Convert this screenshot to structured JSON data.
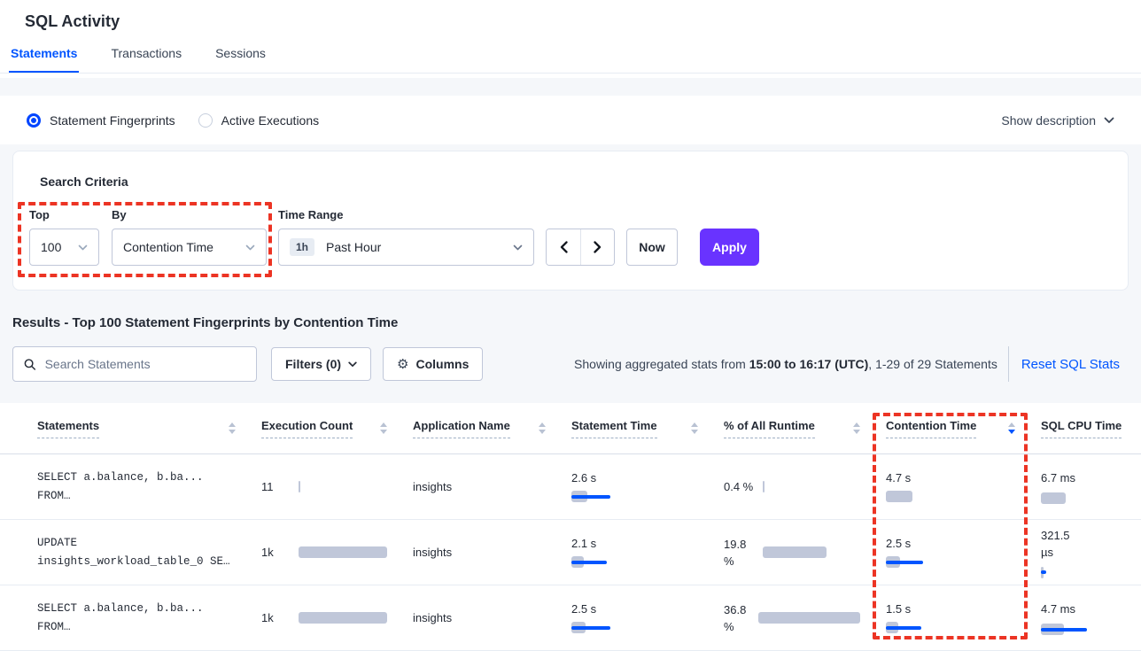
{
  "page": {
    "title": "SQL Activity"
  },
  "tabs": [
    {
      "label": "Statements"
    },
    {
      "label": "Transactions"
    },
    {
      "label": "Sessions"
    }
  ],
  "view_toggle": {
    "fingerprints_label": "Statement Fingerprints",
    "active_executions_label": "Active Executions",
    "show_description_label": "Show description"
  },
  "search_criteria": {
    "heading": "Search Criteria",
    "top_label": "Top",
    "top_value": "100",
    "by_label": "By",
    "by_value": "Contention Time",
    "time_range_label": "Time Range",
    "time_range_badge": "1h",
    "time_range_value": "Past Hour",
    "now_label": "Now",
    "apply_label": "Apply"
  },
  "results": {
    "heading": "Results - Top 100 Statement Fingerprints by Contention Time",
    "search_placeholder": "Search Statements",
    "filters_label": "Filters (0)",
    "columns_label": "Columns",
    "stats_prefix": "Showing aggregated stats from ",
    "stats_bold": "15:00 to 16:17 (UTC)",
    "stats_suffix": ", 1-29 of 29 Statements",
    "reset_label": "Reset SQL Stats"
  },
  "table": {
    "columns": [
      {
        "label": "Statements"
      },
      {
        "label": "Execution Count"
      },
      {
        "label": "Application Name"
      },
      {
        "label": "Statement Time"
      },
      {
        "label": "% of All Runtime"
      },
      {
        "label": "Contention Time",
        "sorted": "desc"
      },
      {
        "label": "SQL CPU Time"
      }
    ],
    "rows": [
      {
        "statement_line1": "SELECT a.balance, b.ba...",
        "statement_line2": "FROM…",
        "execution_count": "11",
        "application_name": "insights",
        "statement_time": "2.6 s",
        "runtime_pct": "0.4 %",
        "contention_time": "4.7 s",
        "sql_cpu_time": "6.7 ms",
        "bars": {
          "exec": {
            "gray": 2,
            "blue": 0
          },
          "stmt": {
            "gray": 18,
            "blue": 44
          },
          "pct": {
            "gray": 2,
            "blue": 0
          },
          "cont": {
            "gray": 30,
            "blue": 0
          },
          "cpu": {
            "gray": 28,
            "blue": 0
          }
        }
      },
      {
        "statement_line1": "UPDATE",
        "statement_line2": "insights_workload_table_0 SE…",
        "execution_count": "1k",
        "application_name": "insights",
        "statement_time": "2.1 s",
        "runtime_pct": "19.8 %",
        "contention_time": "2.5 s",
        "sql_cpu_time": "321.5 µs",
        "bars": {
          "exec": {
            "gray": 100,
            "blue": 0
          },
          "stmt": {
            "gray": 14,
            "blue": 40
          },
          "pct": {
            "gray": 72,
            "blue": 0
          },
          "cont": {
            "gray": 16,
            "blue": 42
          },
          "cpu": {
            "gray": 3,
            "blue": 6
          }
        }
      },
      {
        "statement_line1": "SELECT a.balance, b.ba...",
        "statement_line2": "FROM…",
        "execution_count": "1k",
        "application_name": "insights",
        "statement_time": "2.5 s",
        "runtime_pct": "36.8 %",
        "contention_time": "1.5 s",
        "sql_cpu_time": "4.7 ms",
        "bars": {
          "exec": {
            "gray": 100,
            "blue": 0
          },
          "stmt": {
            "gray": 16,
            "blue": 44
          },
          "pct": {
            "gray": 135,
            "blue": 0
          },
          "cont": {
            "gray": 14,
            "blue": 40
          },
          "cpu": {
            "gray": 26,
            "blue": 52
          }
        }
      }
    ]
  },
  "colors": {
    "accent_blue": "#0055FF",
    "apply_purple": "#6933FF",
    "annotation_red": "#EC3424",
    "bar_gray": "#C0C7D9"
  }
}
